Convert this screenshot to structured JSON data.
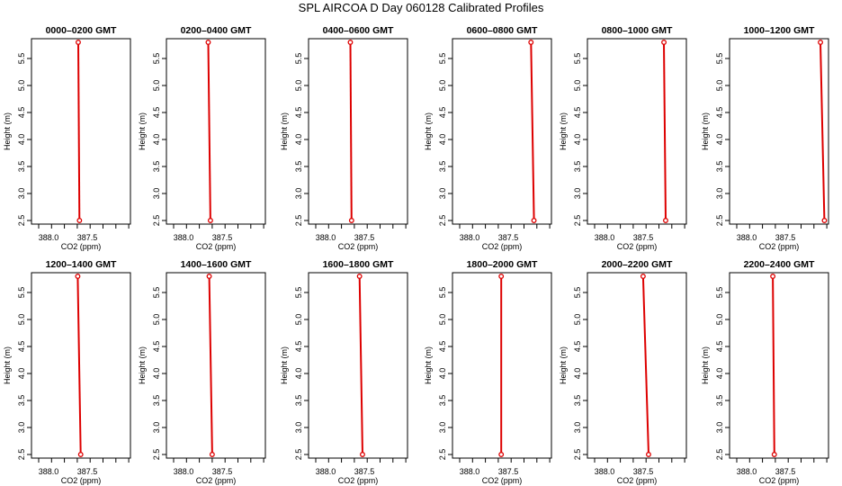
{
  "title": "SPL AIRCOA D  Day 060128  Calibrated Profiles",
  "line_color": "#dd0000",
  "chart_data": [
    {
      "type": "line",
      "title": "0000–0200 GMT",
      "xlabel": "CO2 (ppm)",
      "ylabel": "Height (m)",
      "xlim": [
        386.3,
        390.0
      ],
      "ylim": [
        2.5,
        5.8
      ],
      "x_ticks": [
        "388.0",
        "387.5"
      ],
      "y_ticks": [
        "2.5",
        "3.0",
        "3.5",
        "4.0",
        "4.5",
        "5.0",
        "5.5"
      ],
      "series": [
        {
          "x": [
            388.04,
            388.09
          ],
          "y": [
            5.8,
            2.5
          ]
        }
      ]
    },
    {
      "type": "line",
      "title": "0200–0400 GMT",
      "xlabel": "CO2 (ppm)",
      "ylabel": "Height (m)",
      "xlim": [
        386.3,
        390.0
      ],
      "ylim": [
        2.5,
        5.8
      ],
      "x_ticks": [
        "388.0",
        "387.5"
      ],
      "y_ticks": [
        "2.5",
        "3.0",
        "3.5",
        "4.0",
        "4.5",
        "5.0",
        "5.5"
      ],
      "series": [
        {
          "x": [
            387.84,
            387.93
          ],
          "y": [
            5.8,
            2.5
          ]
        }
      ]
    },
    {
      "type": "line",
      "title": "0400–0600 GMT",
      "xlabel": "CO2 (ppm)",
      "ylabel": "Height (m)",
      "xlim": [
        386.3,
        390.0
      ],
      "ylim": [
        2.5,
        5.8
      ],
      "x_ticks": [
        "388.0",
        "387.5"
      ],
      "y_ticks": [
        "2.5",
        "3.0",
        "3.5",
        "4.0",
        "4.5",
        "5.0",
        "5.5"
      ],
      "series": [
        {
          "x": [
            387.84,
            387.89
          ],
          "y": [
            5.8,
            2.5
          ]
        }
      ]
    },
    {
      "type": "line",
      "title": "0600–0800 GMT",
      "xlabel": "CO2 (ppm)",
      "ylabel": "Height (m)",
      "xlim": [
        386.3,
        390.0
      ],
      "ylim": [
        2.5,
        5.8
      ],
      "x_ticks": [
        "388.0",
        "387.5"
      ],
      "y_ticks": [
        "2.5",
        "3.0",
        "3.5",
        "4.0",
        "4.5",
        "5.0",
        "5.5"
      ],
      "series": [
        {
          "x": [
            389.32,
            389.44
          ],
          "y": [
            5.8,
            2.5
          ]
        }
      ]
    },
    {
      "type": "line",
      "title": "0800–1000 GMT",
      "xlabel": "CO2 (ppm)",
      "ylabel": "Height (m)",
      "xlim": [
        386.3,
        390.0
      ],
      "ylim": [
        2.5,
        5.8
      ],
      "x_ticks": [
        "388.0",
        "387.5"
      ],
      "y_ticks": [
        "2.5",
        "3.0",
        "3.5",
        "4.0",
        "4.5",
        "5.0",
        "5.5"
      ],
      "series": [
        {
          "x": [
            389.24,
            389.31
          ],
          "y": [
            5.8,
            2.5
          ]
        }
      ]
    },
    {
      "type": "line",
      "title": "1000–1200 GMT",
      "xlabel": "CO2 (ppm)",
      "ylabel": "Height (m)",
      "xlim": [
        386.3,
        390.0
      ],
      "ylim": [
        2.5,
        5.8
      ],
      "x_ticks": [
        "388.0",
        "387.5"
      ],
      "y_ticks": [
        "2.5",
        "3.0",
        "3.5",
        "4.0",
        "4.5",
        "5.0",
        "5.5"
      ],
      "series": [
        {
          "x": [
            389.82,
            389.98
          ],
          "y": [
            5.8,
            2.5
          ]
        }
      ]
    },
    {
      "type": "line",
      "title": "1200–1400 GMT",
      "xlabel": "CO2 (ppm)",
      "ylabel": "Height (m)",
      "xlim": [
        386.3,
        390.0
      ],
      "ylim": [
        2.5,
        5.8
      ],
      "x_ticks": [
        "388.0",
        "387.5"
      ],
      "y_ticks": [
        "2.5",
        "3.0",
        "3.5",
        "4.0",
        "4.5",
        "5.0",
        "5.5"
      ],
      "series": [
        {
          "x": [
            388.02,
            388.14
          ],
          "y": [
            5.8,
            2.5
          ]
        }
      ]
    },
    {
      "type": "line",
      "title": "1400–1600 GMT",
      "xlabel": "CO2 (ppm)",
      "ylabel": "Height (m)",
      "xlim": [
        386.3,
        390.0
      ],
      "ylim": [
        2.5,
        5.8
      ],
      "x_ticks": [
        "388.0",
        "387.5"
      ],
      "y_ticks": [
        "2.5",
        "3.0",
        "3.5",
        "4.0",
        "4.5",
        "5.0",
        "5.5"
      ],
      "series": [
        {
          "x": [
            387.88,
            388.0
          ],
          "y": [
            5.8,
            2.5
          ]
        }
      ]
    },
    {
      "type": "line",
      "title": "1600–1800 GMT",
      "xlabel": "CO2 (ppm)",
      "ylabel": "Height (m)",
      "xlim": [
        386.3,
        390.0
      ],
      "ylim": [
        2.5,
        5.8
      ],
      "x_ticks": [
        "388.0",
        "387.5"
      ],
      "y_ticks": [
        "2.5",
        "3.0",
        "3.5",
        "4.0",
        "4.5",
        "5.0",
        "5.5"
      ],
      "series": [
        {
          "x": [
            388.21,
            388.33
          ],
          "y": [
            5.8,
            2.5
          ]
        }
      ]
    },
    {
      "type": "line",
      "title": "1800–2000 GMT",
      "xlabel": "CO2 (ppm)",
      "ylabel": "Height (m)",
      "xlim": [
        386.3,
        390.0
      ],
      "ylim": [
        2.5,
        5.8
      ],
      "x_ticks": [
        "388.0",
        "387.5"
      ],
      "y_ticks": [
        "2.5",
        "3.0",
        "3.5",
        "4.0",
        "4.5",
        "5.0",
        "5.5"
      ],
      "series": [
        {
          "x": [
            388.12,
            388.12
          ],
          "y": [
            5.8,
            2.5
          ]
        }
      ]
    },
    {
      "type": "line",
      "title": "2000–2200 GMT",
      "xlabel": "CO2 (ppm)",
      "ylabel": "Height (m)",
      "xlim": [
        386.3,
        390.0
      ],
      "ylim": [
        2.5,
        5.8
      ],
      "x_ticks": [
        "388.0",
        "387.5"
      ],
      "y_ticks": [
        "2.5",
        "3.0",
        "3.5",
        "4.0",
        "4.5",
        "5.0",
        "5.5"
      ],
      "series": [
        {
          "x": [
            388.4,
            388.62
          ],
          "y": [
            5.8,
            2.5
          ]
        }
      ]
    },
    {
      "type": "line",
      "title": "2200–2400 GMT",
      "xlabel": "CO2 (ppm)",
      "ylabel": "Height (m)",
      "xlim": [
        386.3,
        390.0
      ],
      "ylim": [
        2.5,
        5.8
      ],
      "x_ticks": [
        "388.0",
        "387.5"
      ],
      "y_ticks": [
        "2.5",
        "3.0",
        "3.5",
        "4.0",
        "4.5",
        "5.0",
        "5.5"
      ],
      "series": [
        {
          "x": [
            387.9,
            387.96
          ],
          "y": [
            5.8,
            2.5
          ]
        }
      ]
    }
  ]
}
